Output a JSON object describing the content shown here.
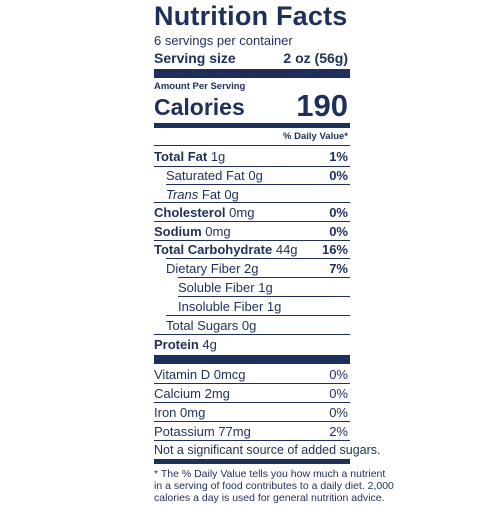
{
  "label": {
    "title": "Nutrition Facts",
    "servings_per_container": "6 servings per container",
    "serving_size_label": "Serving size",
    "serving_size_value": "2 oz (56g)",
    "amount_per_serving": "Amount Per Serving",
    "calories_label": "Calories",
    "calories_value": "190",
    "daily_value_header": "% Daily Value*",
    "nutrients": [
      {
        "name": "Total Fat",
        "amount": "1g",
        "dv": "1%"
      },
      {
        "name": "Saturated Fat",
        "amount": "0g",
        "dv": "0%"
      },
      {
        "name": "Trans",
        "name_suffix": "Fat",
        "amount": "0g",
        "dv": ""
      },
      {
        "name": "Cholesterol",
        "amount": "0mg",
        "dv": "0%"
      },
      {
        "name": "Sodium",
        "amount": "0mg",
        "dv": "0%"
      },
      {
        "name": "Total Carbohydrate",
        "amount": "44g",
        "dv": "16%"
      },
      {
        "name": "Dietary Fiber",
        "amount": "2g",
        "dv": "7%"
      },
      {
        "name": "Soluble Fiber",
        "amount": "1g",
        "dv": ""
      },
      {
        "name": "Insoluble Fiber",
        "amount": "1g",
        "dv": ""
      },
      {
        "name": "Total Sugars",
        "amount": "0g",
        "dv": ""
      },
      {
        "name": "Protein",
        "amount": "4g",
        "dv": ""
      }
    ],
    "vitamins": [
      {
        "name": "Vitamin D",
        "amount": "0mcg",
        "dv": "0%"
      },
      {
        "name": "Calcium",
        "amount": "2mg",
        "dv": "0%"
      },
      {
        "name": "Iron",
        "amount": "0mg",
        "dv": "0%"
      },
      {
        "name": "Potassium",
        "amount": "77mg",
        "dv": "2%"
      }
    ],
    "added_sugars_note": "Not a significant source of added sugars.",
    "footnote_lines": [
      "* The % Daily Value tells you how much a nutrient",
      "in a serving of food contributes to a daily diet. 2,000",
      "calories a day is used for general nutrition advice."
    ]
  }
}
